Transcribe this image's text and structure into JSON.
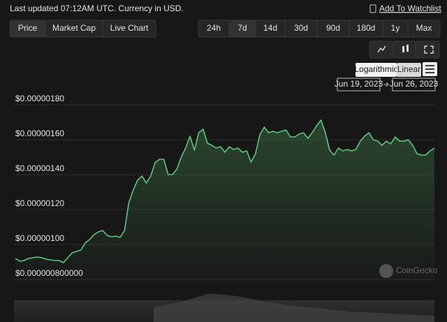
{
  "header": {
    "updated": "Last updated 07:12AM UTC. Currency in USD.",
    "watchlist": "Add To Watchlist"
  },
  "tabs": [
    "Price",
    "Market Cap",
    "Live Chart"
  ],
  "ranges": [
    "24h",
    "7d",
    "14d",
    "30d",
    "90d",
    "180d",
    "1y",
    "Max"
  ],
  "scale_buttons": [
    "Logarithmic",
    "Linear"
  ],
  "date_range": {
    "from": "Jun 19, 2023",
    "to": "Jun 26, 2023"
  },
  "watermark": "CoinGecko",
  "chart_data": {
    "type": "line",
    "color": "#5cc97a",
    "ylim": [
      7.8e-07,
      1.84e-06
    ],
    "yticks": [
      {
        "value": 1.8e-06,
        "label": "$0.00000180"
      },
      {
        "value": 1.6e-06,
        "label": "$0.00000160"
      },
      {
        "value": 1.4e-06,
        "label": "$0.00000140"
      },
      {
        "value": 1.2e-06,
        "label": "$0.00000120"
      },
      {
        "value": 1e-06,
        "label": "$0.00000100"
      },
      {
        "value": 8e-07,
        "label": "$0.000000800000"
      }
    ],
    "grid": true,
    "values": [
      9.2e-07,
      9.04e-07,
      9.08e-07,
      9.2e-07,
      9.24e-07,
      9.28e-07,
      9.24e-07,
      9.16e-07,
      9.12e-07,
      9.08e-07,
      9.08e-07,
      8.96e-07,
      9.24e-07,
      9.52e-07,
      9.6e-07,
      9.68e-07,
      1.008e-06,
      1.028e-06,
      1.056e-06,
      1.072e-06,
      1.08e-06,
      1.052e-06,
      1.044e-06,
      1.048e-06,
      1.04e-06,
      1.08e-06,
      1.24e-06,
      1.312e-06,
      1.368e-06,
      1.392e-06,
      1.352e-06,
      1.392e-06,
      1.468e-06,
      1.488e-06,
      1.488e-06,
      1.4e-06,
      1.4e-06,
      1.432e-06,
      1.5e-06,
      1.552e-06,
      1.62e-06,
      1.54e-06,
      1.64e-06,
      1.66e-06,
      1.58e-06,
      1.568e-06,
      1.552e-06,
      1.56e-06,
      1.528e-06,
      1.56e-06,
      1.544e-06,
      1.552e-06,
      1.528e-06,
      1.536e-06,
      1.472e-06,
      1.52e-06,
      1.628e-06,
      1.672e-06,
      1.64e-06,
      1.648e-06,
      1.64e-06,
      1.648e-06,
      1.656e-06,
      1.616e-06,
      1.616e-06,
      1.632e-06,
      1.64e-06,
      1.608e-06,
      1.64e-06,
      1.68e-06,
      1.712e-06,
      1.64e-06,
      1.54e-06,
      1.512e-06,
      1.552e-06,
      1.536e-06,
      1.544e-06,
      1.536e-06,
      1.544e-06,
      1.592e-06,
      1.62e-06,
      1.64e-06,
      1.6e-06,
      1.592e-06,
      1.568e-06,
      1.592e-06,
      1.576e-06,
      1.616e-06,
      1.592e-06,
      1.592e-06,
      1.6e-06,
      1.568e-06,
      1.52e-06,
      1.512e-06,
      1.512e-06,
      1.536e-06,
      1.552e-06
    ]
  }
}
